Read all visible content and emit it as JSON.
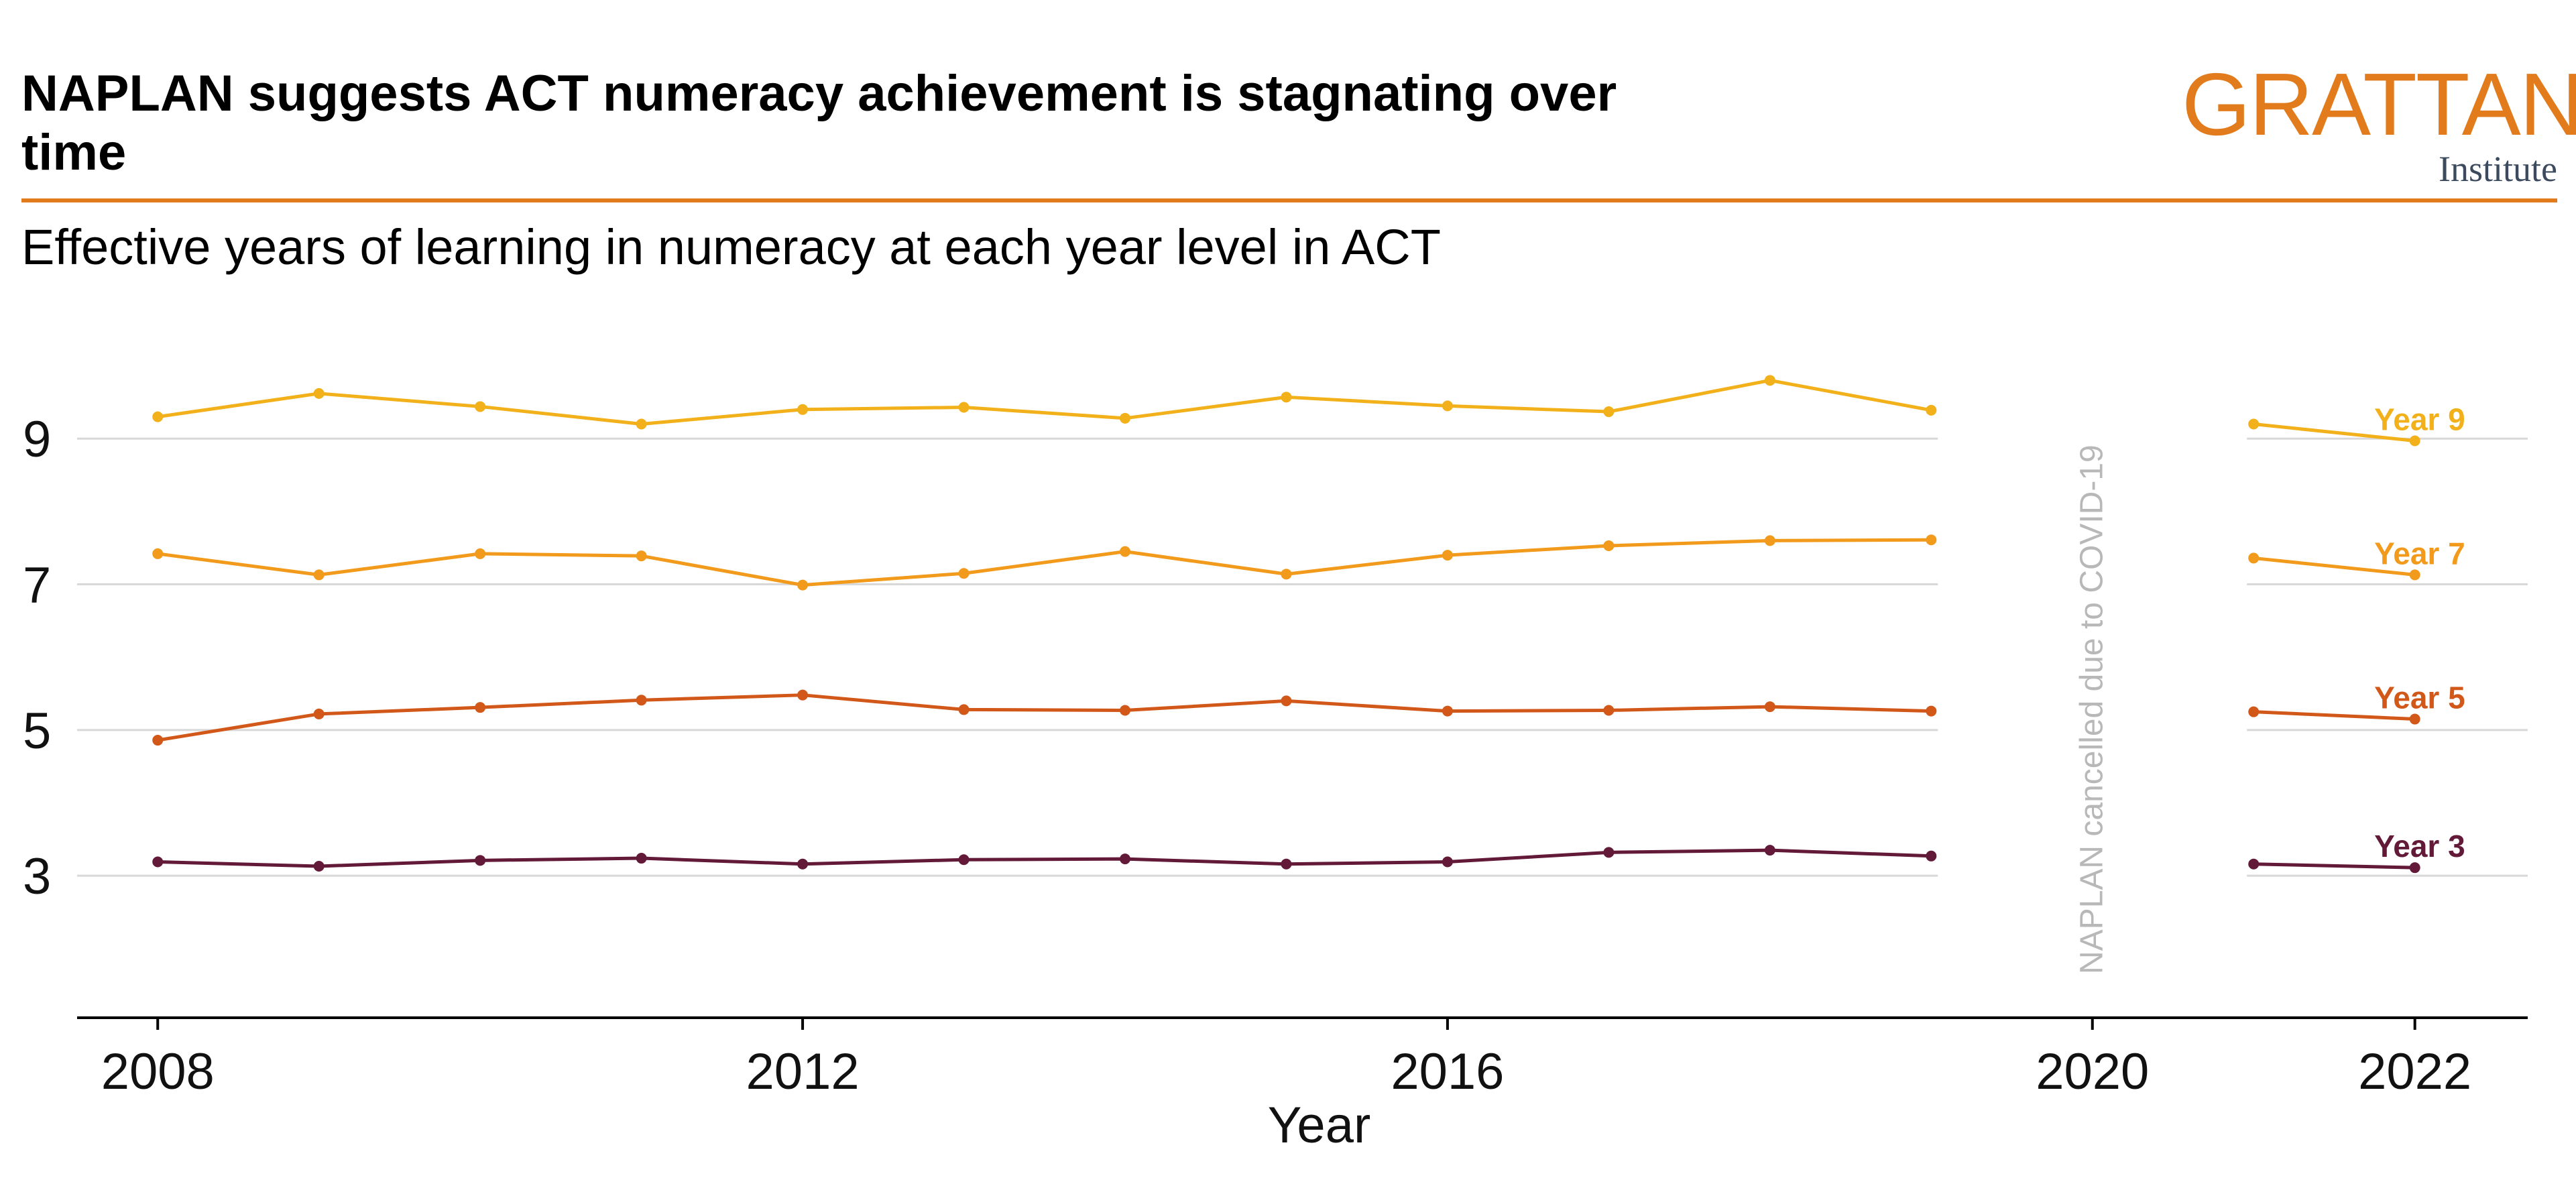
{
  "header": {
    "title": "NAPLAN suggests ACT numeracy achievement is stagnating over time",
    "subtitle": "Effective years of learning in numeracy at each year level in ACT",
    "logo_word": "GRATTAN",
    "logo_sub": "Institute"
  },
  "colors": {
    "accent": "#e27b1c",
    "year9": "#f2b11b",
    "year7": "#f29a1b",
    "year5": "#d2581a",
    "year3": "#631a38",
    "grid": "#d8d8d8",
    "annotation": "#b8b8b8"
  },
  "chart_data": {
    "type": "line",
    "title": "NAPLAN suggests ACT numeracy achievement is stagnating over time",
    "subtitle": "Effective years of learning in numeracy at each year level in ACT",
    "xlabel": "Year",
    "ylabel": "",
    "xlim": [
      2007.5,
      2022.7
    ],
    "ylim": [
      1.05,
      10.3
    ],
    "xticks": [
      2008,
      2012,
      2016,
      2020,
      2022
    ],
    "yticks": [
      3,
      5,
      7,
      9
    ],
    "grid": true,
    "gap": {
      "after": 2019,
      "before": 2021
    },
    "annotation": "NAPLAN cancelled due to COVID-19",
    "annotation_x": 2020,
    "series": [
      {
        "name": "Year 9",
        "color": "#f2b11b",
        "x": [
          2008,
          2009,
          2010,
          2011,
          2012,
          2013,
          2014,
          2015,
          2016,
          2017,
          2018,
          2019,
          2021,
          2022
        ],
        "values": [
          9.3,
          9.62,
          9.44,
          9.2,
          9.4,
          9.43,
          9.28,
          9.57,
          9.45,
          9.37,
          9.8,
          9.39,
          9.2,
          8.97
        ]
      },
      {
        "name": "Year 7",
        "color": "#f29a1b",
        "x": [
          2008,
          2009,
          2010,
          2011,
          2012,
          2013,
          2014,
          2015,
          2016,
          2017,
          2018,
          2019,
          2021,
          2022
        ],
        "values": [
          7.42,
          7.13,
          7.42,
          7.39,
          6.99,
          7.15,
          7.45,
          7.14,
          7.4,
          7.53,
          7.6,
          7.61,
          7.36,
          7.13
        ]
      },
      {
        "name": "Year 5",
        "color": "#d2581a",
        "x": [
          2008,
          2009,
          2010,
          2011,
          2012,
          2013,
          2014,
          2015,
          2016,
          2017,
          2018,
          2019,
          2021,
          2022
        ],
        "values": [
          4.86,
          5.22,
          5.31,
          5.41,
          5.48,
          5.28,
          5.27,
          5.4,
          5.26,
          5.27,
          5.32,
          5.26,
          5.25,
          5.15
        ]
      },
      {
        "name": "Year 3",
        "color": "#631a38",
        "x": [
          2008,
          2009,
          2010,
          2011,
          2012,
          2013,
          2014,
          2015,
          2016,
          2017,
          2018,
          2019,
          2021,
          2022
        ],
        "values": [
          3.19,
          3.13,
          3.21,
          3.24,
          3.16,
          3.22,
          3.23,
          3.16,
          3.19,
          3.32,
          3.35,
          3.27,
          3.16,
          3.11
        ]
      }
    ]
  }
}
